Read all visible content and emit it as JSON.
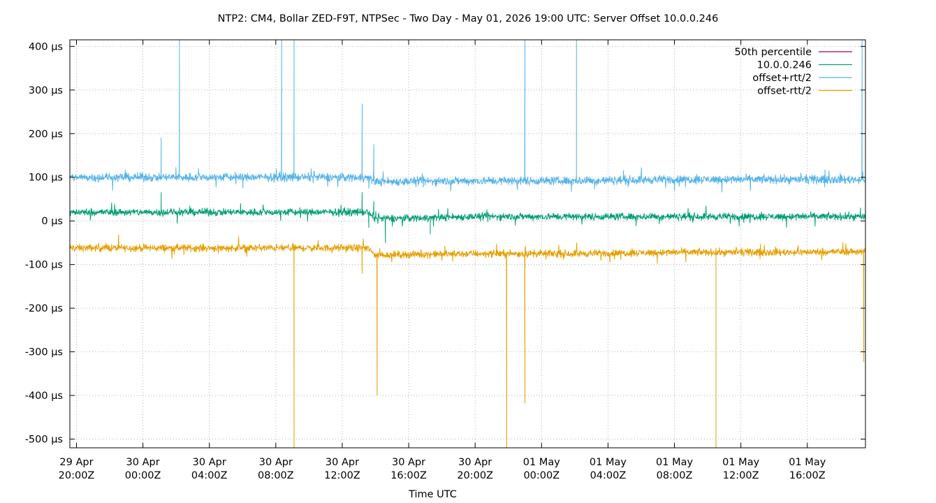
{
  "chart_data": {
    "type": "line",
    "title": "NTP2: CM4, Bollar ZED-F9T, NTPSec - Two Day - May 01, 2026 19:00 UTC: Server Offset 10.0.0.246",
    "xlabel": "Time UTC",
    "ylabel": "",
    "x_unit": "hours since 29 Apr 20:00Z",
    "xlim": [
      -0.4,
      47.5
    ],
    "ylim": [
      -520,
      415
    ],
    "y_ticks": [
      400,
      300,
      200,
      100,
      0,
      -100,
      -200,
      -300,
      -400,
      -500
    ],
    "y_tick_labels": [
      "400 µs",
      "300 µs",
      "200 µs",
      "100 µs",
      "0 µs",
      "-100 µs",
      "-200 µs",
      "-300 µs",
      "-400 µs",
      "-500 µs"
    ],
    "x_ticks": [
      0,
      4,
      8,
      12,
      16,
      20,
      24,
      28,
      32,
      36,
      40,
      44
    ],
    "x_tick_labels": [
      [
        "29 Apr",
        "20:00Z"
      ],
      [
        "30 Apr",
        "00:00Z"
      ],
      [
        "30 Apr",
        "04:00Z"
      ],
      [
        "30 Apr",
        "08:00Z"
      ],
      [
        "30 Apr",
        "12:00Z"
      ],
      [
        "30 Apr",
        "16:00Z"
      ],
      [
        "30 Apr",
        "20:00Z"
      ],
      [
        "01 May",
        "00:00Z"
      ],
      [
        "01 May",
        "04:00Z"
      ],
      [
        "01 May",
        "08:00Z"
      ],
      [
        "01 May",
        "12:00Z"
      ],
      [
        "01 May",
        "16:00Z"
      ]
    ],
    "grid": true,
    "legend_position": "top-right",
    "series": [
      {
        "name": "50th percentile",
        "color": "#94007f",
        "values": []
      },
      {
        "name": "10.0.0.246",
        "color": "#009e73",
        "x": [
          -0.4,
          6.0,
          12.0,
          17.5,
          18.0,
          24.0,
          30.0,
          36.0,
          42.0,
          47.5
        ],
        "values": [
          20,
          20,
          20,
          20,
          5,
          10,
          10,
          10,
          10,
          10
        ],
        "noise": 12,
        "spikes": [
          {
            "x": 5.1,
            "y": 65
          },
          {
            "x": 6.2,
            "y": 30
          },
          {
            "x": 17.2,
            "y": 65
          },
          {
            "x": 17.6,
            "y": -15
          },
          {
            "x": 17.9,
            "y": 45
          },
          {
            "x": 18.6,
            "y": -50
          },
          {
            "x": 21.3,
            "y": -30
          },
          {
            "x": 47.2,
            "y": 30
          }
        ]
      },
      {
        "name": "offset+rtt/2",
        "color": "#56b4e9",
        "x": [
          -0.4,
          6.0,
          12.0,
          17.5,
          18.0,
          24.0,
          30.0,
          36.0,
          42.0,
          47.5
        ],
        "values": [
          100,
          100,
          100,
          100,
          90,
          92,
          92,
          95,
          95,
          95
        ],
        "noise": 14,
        "spikes": [
          {
            "x": 5.1,
            "y": 190
          },
          {
            "x": 6.2,
            "y": 415
          },
          {
            "x": 12.35,
            "y": 415
          },
          {
            "x": 13.1,
            "y": 415
          },
          {
            "x": 17.2,
            "y": 268
          },
          {
            "x": 17.9,
            "y": 175
          },
          {
            "x": 27.0,
            "y": 415
          },
          {
            "x": 30.1,
            "y": 415
          },
          {
            "x": 47.3,
            "y": 415
          }
        ]
      },
      {
        "name": "offset-rtt/2",
        "color": "#e69f00",
        "x": [
          -0.4,
          6.0,
          12.0,
          17.5,
          18.0,
          24.0,
          30.0,
          36.0,
          42.0,
          47.5
        ],
        "values": [
          -62,
          -62,
          -62,
          -62,
          -78,
          -75,
          -75,
          -72,
          -72,
          -70
        ],
        "noise": 12,
        "spikes": [
          {
            "x": 13.1,
            "y": -520
          },
          {
            "x": 17.2,
            "y": -120
          },
          {
            "x": 18.1,
            "y": -400
          },
          {
            "x": 25.9,
            "y": -520
          },
          {
            "x": 27.0,
            "y": -418
          },
          {
            "x": 38.5,
            "y": -520
          },
          {
            "x": 47.4,
            "y": -323
          }
        ]
      }
    ]
  }
}
